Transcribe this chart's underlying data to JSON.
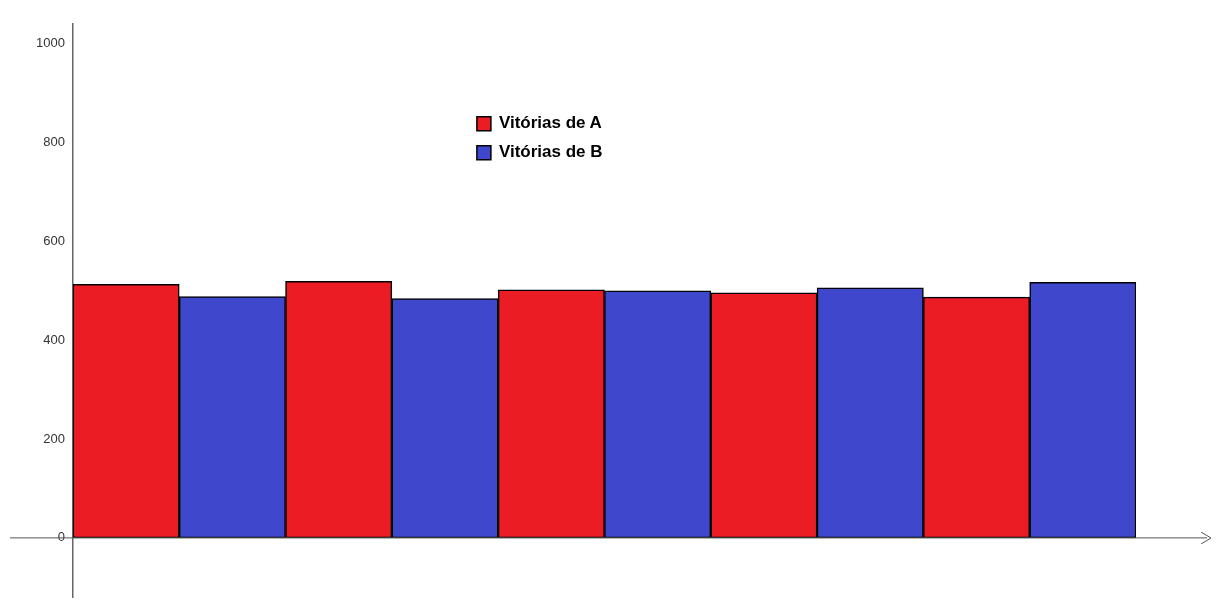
{
  "chart_data": {
    "type": "bar",
    "categories": [
      null,
      null,
      null,
      null,
      null,
      null,
      null,
      null,
      null,
      null
    ],
    "series": [
      {
        "name": "Vitórias de A",
        "color": "#ec1c24",
        "values": [
          513,
          null,
          519,
          null,
          502,
          null,
          496,
          null,
          487,
          null
        ]
      },
      {
        "name": "Vitórias de B",
        "color": "#3f48cc",
        "values": [
          null,
          488,
          null,
          484,
          null,
          500,
          null,
          506,
          null,
          517
        ]
      }
    ],
    "stacked": true,
    "ref_lines": [
      {
        "axis": "y",
        "value": 0,
        "color": "#555555"
      }
    ],
    "ylim": [
      -120,
      1040
    ],
    "yticks": [
      0,
      200,
      400,
      600,
      800,
      1000
    ],
    "grid": false,
    "legend": "top"
  }
}
